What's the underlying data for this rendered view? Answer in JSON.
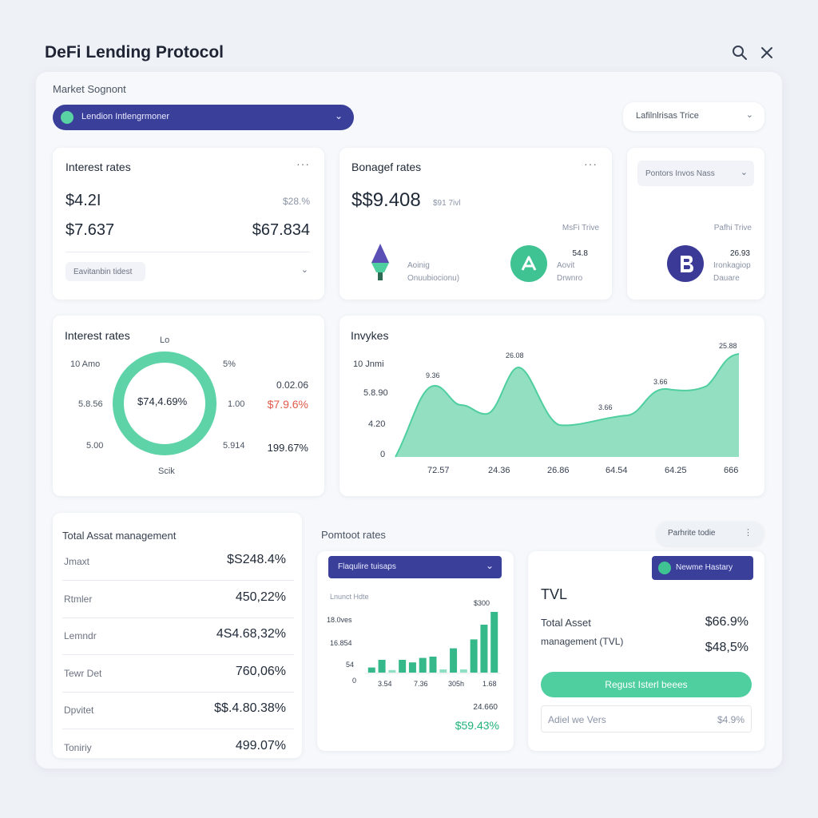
{
  "app": {
    "title": "DeFi Lending Protocol",
    "search_icon": "search-icon",
    "close_icon": "close-icon"
  },
  "segment": {
    "label": "Market Sognont",
    "dropdown": "Lendion Intlengrmoner",
    "right_dropdown": "Lafilnlrisas Trice"
  },
  "card1": {
    "title": "Interest rates",
    "v1": "$4.2I",
    "v1_right": "$28.%",
    "v2": "$7.637",
    "v2_right": "$67.834",
    "select": "Eavitanbin tidest"
  },
  "card2": {
    "title": "Bonagef rates",
    "value": "$$9.408",
    "value_sub": "$91 7ivl",
    "sub_label": "MsFi Trive",
    "asset1_line1": "Aoinig",
    "asset1_line2": "Onuubiocionu)",
    "asset2_value": "54.8",
    "asset2_line1": "Aovit",
    "asset2_line2": "Drwnro"
  },
  "card3": {
    "select": "Pontors Invos Nass",
    "sub_label": "Pafhi Trive",
    "value": "26.93",
    "line1": "Ironkagiop",
    "line2": "Dauare"
  },
  "donut_card": {
    "title": "Interest rates",
    "top_label": "Lo",
    "bottom_label": "Scik",
    "center_value": "$74,4.69%",
    "left_labels": [
      "10 Amo",
      "5.8.56",
      "5.00"
    ],
    "right_labels": [
      "5%",
      "1.00",
      "5.914"
    ],
    "stat1": "0.02.06",
    "stat2": "$7.9.6%",
    "stat3": "199.67%"
  },
  "area_card": {
    "title": "Invykes",
    "chart_data": {
      "type": "area",
      "x": [
        "72.57",
        "24.36",
        "26.86",
        "64.54",
        "64.25",
        "666"
      ],
      "y_ticks": [
        "10 Jnmi",
        "5.8.90",
        "4.20",
        "0"
      ],
      "annotations": [
        "9.36",
        "26.08",
        "3.66",
        "3.66",
        "25.88"
      ]
    }
  },
  "asset_card": {
    "title": "Total Assat management",
    "rows": [
      {
        "label": "Jmaxt",
        "value": "$S248.4%"
      },
      {
        "label": "Rtmler",
        "value": "450,22%"
      },
      {
        "label": "Lemndr",
        "value": "4S4.68,32%"
      },
      {
        "label": "Tewr Det",
        "value": "760,06%"
      },
      {
        "label": "Dpvitet",
        "value": "$$.4.80.38%"
      },
      {
        "label": "Toniriy",
        "value": "499.07%"
      }
    ]
  },
  "pool_section": {
    "title": "Pomtoot rates",
    "pill": "Parhrite todie"
  },
  "bar_card": {
    "dropdown": "Flaqulire tuisaps",
    "chart_title": "Lnunct Hdte",
    "top_label": "$300",
    "chart_data": {
      "type": "bar",
      "y_ticks": [
        "18.0ves",
        "16.854",
        "54",
        "0"
      ],
      "x_ticks": [
        "3.54",
        "7.36",
        "305h",
        "1.68"
      ],
      "series": [
        {
          "values": [
            0.08,
            0.2,
            0.04,
            0.2,
            0.16,
            0.23,
            0.25,
            0.05,
            0.38,
            0.05,
            0.52,
            0.75,
            0.95
          ]
        }
      ]
    },
    "stat_value": "24.660",
    "stat_pct": "$59.43%"
  },
  "tvl_card": {
    "pill": "Newme Hastary",
    "title": "TVL",
    "r1_label": "Total Asset",
    "r1_value": "$66.9%",
    "r2_label": "management (TVL)",
    "r2_value": "$48,5%",
    "button": "Regust Isterl beees",
    "input_label": "Adiel we Vers",
    "input_value": "$4.9%"
  },
  "colors": {
    "accent_teal": "#4fcf9f",
    "accent_indigo": "#3a3f9a",
    "negative": "#e05a4a",
    "positive": "#1fb37a"
  }
}
